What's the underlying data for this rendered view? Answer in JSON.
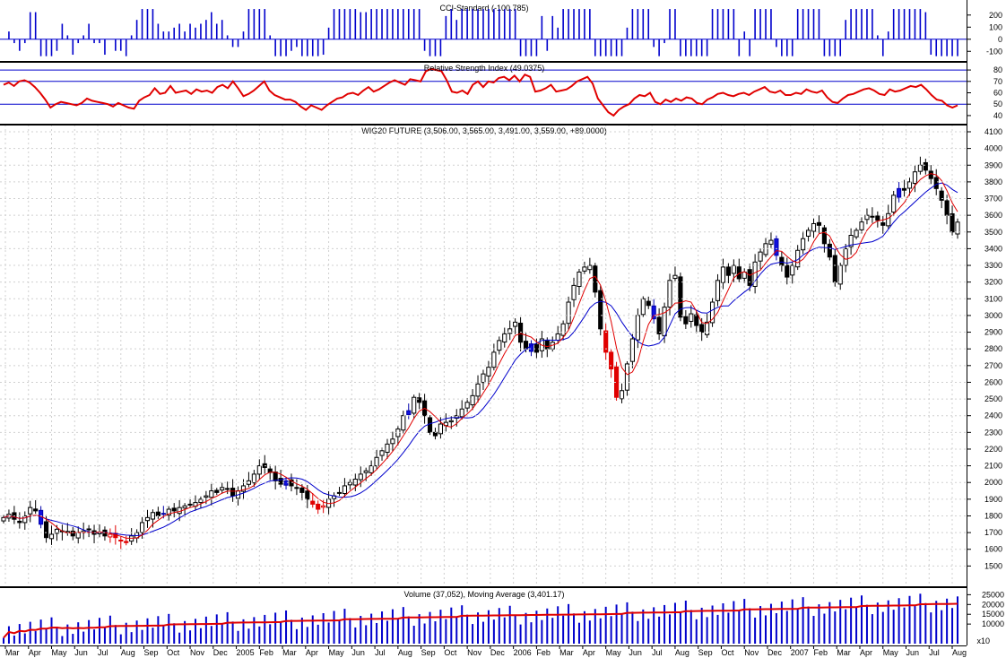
{
  "chart_data": [
    {
      "type": "bar",
      "title": "CCI-Standard (-100.785)",
      "ylim": [
        -150,
        280
      ],
      "y_ticks": [
        200,
        100,
        0,
        -100
      ],
      "series_color": "#0000cc",
      "zero_line": 0
    },
    {
      "type": "line",
      "title": "Relative Strength Index (49.0375)",
      "ylim": [
        36,
        84
      ],
      "y_ticks": [
        80,
        70,
        60,
        50,
        40
      ],
      "reference_lines": [
        80,
        70,
        50
      ],
      "reference_color": "#0000cc",
      "series_color": "#e00000",
      "values": [
        67,
        69,
        66,
        70,
        71,
        69,
        65,
        60,
        54,
        47,
        50,
        52,
        51,
        50,
        49,
        51,
        55,
        53,
        52,
        51,
        50,
        48,
        51,
        49,
        47,
        46,
        53,
        56,
        58,
        64,
        59,
        60,
        66,
        60,
        61,
        62,
        59,
        63,
        61,
        62,
        60,
        65,
        67,
        64,
        70,
        64,
        57,
        59,
        62,
        66,
        70,
        62,
        58,
        56,
        54,
        54,
        52,
        48,
        45,
        49,
        47,
        45,
        49,
        52,
        55,
        56,
        59,
        60,
        58,
        62,
        65,
        61,
        63,
        66,
        69,
        71,
        69,
        67,
        72,
        71,
        70,
        79,
        81,
        80,
        79,
        71,
        61,
        60,
        62,
        59,
        67,
        70,
        65,
        70,
        69,
        73,
        74,
        71,
        75,
        70,
        76,
        74,
        61,
        62,
        64,
        67,
        61,
        62,
        63,
        66,
        70,
        72,
        74,
        68,
        55,
        49,
        43,
        40,
        45,
        48,
        50,
        55,
        58,
        57,
        60,
        52,
        50,
        54,
        52,
        55,
        53,
        56,
        55,
        51,
        50,
        54,
        56,
        59,
        60,
        58,
        57,
        59,
        60,
        58,
        61,
        63,
        65,
        61,
        60,
        62,
        58,
        58,
        60,
        59,
        63,
        61,
        60,
        62,
        56,
        52,
        51,
        55,
        58,
        59,
        61,
        63,
        64,
        62,
        59,
        58,
        63,
        61,
        62,
        64,
        66,
        65,
        67,
        63,
        58,
        54,
        53,
        49,
        47,
        49
      ]
    },
    {
      "type": "candlestick",
      "title": "WIG20 FUTURE (3,506.00, 3,565.00, 3,491.00, 3,559.00, +89.0000)",
      "ylim": [
        1400,
        4100
      ],
      "y_ticks": [
        4100,
        4000,
        3900,
        3800,
        3700,
        3600,
        3500,
        3400,
        3300,
        3200,
        3100,
        3000,
        2900,
        2800,
        2700,
        2600,
        2500,
        2400,
        2300,
        2200,
        2100,
        2000,
        1900,
        1800,
        1700,
        1600,
        1500
      ],
      "x_ticks": [
        "Mar",
        "Apr",
        "May",
        "Jun",
        "Jul",
        "Aug",
        "Sep",
        "Oct",
        "Nov",
        "Dec",
        "2005",
        "Feb",
        "Mar",
        "Apr",
        "May",
        "Jun",
        "Jul",
        "Aug",
        "Sep",
        "Oct",
        "Nov",
        "Dec",
        "2006",
        "Feb",
        "Mar",
        "Apr",
        "May",
        "Jun",
        "Jul",
        "Aug",
        "Sep",
        "Oct",
        "Nov",
        "Dec",
        "2007",
        "Feb",
        "Mar",
        "Apr",
        "May",
        "Jun",
        "Jul",
        "Aug"
      ],
      "ma_fast_color": "#e00000",
      "ma_slow_color": "#0000cc",
      "closes": [
        1790,
        1810,
        1780,
        1760,
        1800,
        1850,
        1830,
        1750,
        1670,
        1690,
        1720,
        1710,
        1700,
        1680,
        1700,
        1710,
        1720,
        1690,
        1700,
        1680,
        1690,
        1670,
        1650,
        1640,
        1680,
        1700,
        1760,
        1790,
        1820,
        1800,
        1810,
        1840,
        1830,
        1850,
        1860,
        1870,
        1880,
        1900,
        1920,
        1950,
        1940,
        1970,
        1960,
        1920,
        1950,
        1980,
        2010,
        2050,
        2100,
        2090,
        2060,
        2010,
        1990,
        2010,
        1980,
        1970,
        1940,
        1900,
        1870,
        1840,
        1860,
        1900,
        1920,
        1940,
        1980,
        2000,
        2020,
        2050,
        2070,
        2100,
        2150,
        2190,
        2230,
        2260,
        2320,
        2400,
        2430,
        2510,
        2480,
        2400,
        2300,
        2280,
        2350,
        2360,
        2370,
        2400,
        2440,
        2480,
        2520,
        2590,
        2650,
        2690,
        2780,
        2850,
        2890,
        2920,
        2960,
        2840,
        2800,
        2830,
        2780,
        2860,
        2800,
        2840,
        2890,
        2950,
        3080,
        3180,
        3260,
        3290,
        3300,
        3140,
        2920,
        2780,
        2680,
        2510,
        2550,
        2710,
        2860,
        3000,
        3100,
        3060,
        2980,
        2890,
        3050,
        3210,
        3240,
        2990,
        2950,
        3010,
        2940,
        2900,
        2960,
        3080,
        3210,
        3290,
        3240,
        3300,
        3220,
        3260,
        3180,
        3320,
        3380,
        3430,
        3450,
        3360,
        3300,
        3230,
        3300,
        3390,
        3460,
        3510,
        3550,
        3540,
        3430,
        3350,
        3200,
        3300,
        3400,
        3480,
        3510,
        3560,
        3600,
        3590,
        3570,
        3540,
        3610,
        3720,
        3760,
        3750,
        3800,
        3860,
        3900,
        3870,
        3820,
        3760,
        3690,
        3600,
        3500,
        3559
      ],
      "volume_title": "Volume (37,052), Moving Average (3,401.17)",
      "volume_ylim": [
        0,
        27000
      ],
      "volume_ticks": [
        25000,
        20000,
        15000,
        10000
      ],
      "volume_ticks_small": [
        "x10"
      ],
      "volume_bar_color": "#0000cc",
      "volume_ma_color": "#e00000"
    }
  ]
}
